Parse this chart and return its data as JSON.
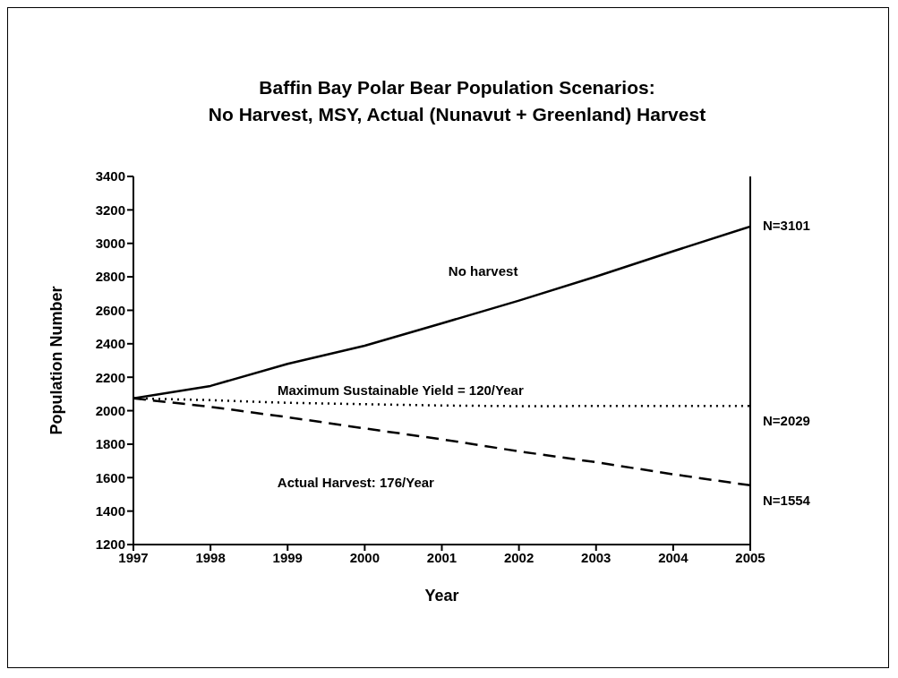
{
  "chart_data": {
    "type": "line",
    "title": "Baffin Bay Polar Bear Population Scenarios:\nNo Harvest, MSY, Actual (Nunavut + Greenland) Harvest",
    "xlabel": "Year",
    "ylabel": "Population Number",
    "x": [
      1997,
      1998,
      1999,
      2000,
      2001,
      2002,
      2003,
      2004,
      2005
    ],
    "series": [
      {
        "name": "No harvest",
        "color": "#000000",
        "line_style": "solid",
        "values": [
          2074,
          2148,
          2280,
          2388,
          2522,
          2658,
          2802,
          2953,
          3101
        ],
        "value_labels": [
          null,
          null,
          null,
          null,
          null,
          null,
          null,
          null,
          "N=3101"
        ]
      },
      {
        "name": "Maximum Sustainable Yield = 120/Year",
        "color": "#000000",
        "line_style": "dotted",
        "values": [
          2074,
          2063,
          2047,
          2039,
          2031,
          2027,
          2028,
          2028,
          2029
        ],
        "value_labels": [
          null,
          null,
          null,
          null,
          null,
          null,
          null,
          null,
          "N=2029"
        ]
      },
      {
        "name": "Actual Harvest: 176/Year",
        "color": "#000000",
        "line_style": "dashed",
        "values": [
          2074,
          2023,
          1961,
          1894,
          1829,
          1757,
          1692,
          1620,
          1554
        ],
        "value_labels": [
          null,
          null,
          null,
          null,
          null,
          null,
          null,
          null,
          "N=1554"
        ]
      }
    ],
    "xlim": [
      1997,
      2005
    ],
    "xticks": [
      1997,
      1998,
      1999,
      2000,
      2001,
      2002,
      2003,
      2004,
      2005
    ],
    "ylim": [
      1200,
      3400
    ],
    "yticks": [
      1200,
      1400,
      1600,
      1800,
      2000,
      2200,
      2400,
      2600,
      2800,
      3000,
      3200,
      3400
    ],
    "grid": false,
    "legend": false,
    "marker": "none"
  }
}
